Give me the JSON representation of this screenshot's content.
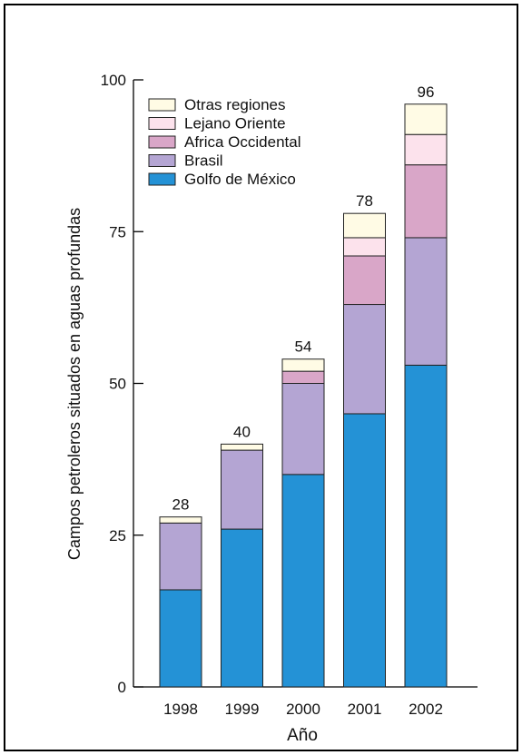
{
  "chart_data": {
    "type": "bar",
    "stacked": true,
    "title": "",
    "xlabel": "Año",
    "ylabel": "Campos petroleros situados en aguas profundas",
    "categories": [
      "1998",
      "1999",
      "2000",
      "2001",
      "2002"
    ],
    "ylim": [
      0,
      100
    ],
    "yticks": [
      0,
      25,
      50,
      75,
      100
    ],
    "totals": [
      28,
      40,
      54,
      78,
      96
    ],
    "series": [
      {
        "name": "Golfo de México",
        "color": "#2492d6",
        "values": [
          16,
          26,
          35,
          45,
          53
        ]
      },
      {
        "name": "Brasil",
        "color": "#b4a5d3",
        "values": [
          11,
          13,
          15,
          18,
          21
        ]
      },
      {
        "name": "Africa Occidental",
        "color": "#d9a6c8",
        "values": [
          0,
          0,
          2,
          8,
          12
        ]
      },
      {
        "name": "Lejano Oriente",
        "color": "#fce2ec",
        "values": [
          0,
          0,
          0,
          3,
          5
        ]
      },
      {
        "name": "Otras regiones",
        "color": "#fffbe5",
        "values": [
          1,
          1,
          2,
          4,
          5
        ]
      }
    ],
    "legend_order": [
      "Otras regiones",
      "Lejano Oriente",
      "Africa Occidental",
      "Brasil",
      "Golfo de México"
    ],
    "legend_position": "top-left",
    "grid": false
  }
}
